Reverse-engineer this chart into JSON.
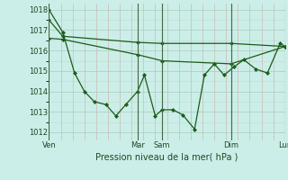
{
  "xlabel": "Pression niveau de la mer( hPa )",
  "bg_color": "#cceee8",
  "grid_color_major": "#aaccbb",
  "grid_color_minor": "#bbddcc",
  "vgrid_color": "#ccaaaa",
  "line_color": "#1a5c1a",
  "ylim": [
    1011.6,
    1018.3
  ],
  "yticks": [
    1012,
    1013,
    1014,
    1015,
    1016,
    1017,
    1018
  ],
  "xlim": [
    0,
    240
  ],
  "vline_positions": [
    0,
    90,
    115,
    185,
    240
  ],
  "xtick_positions": [
    0,
    90,
    115,
    185,
    240
  ],
  "xtick_labels": [
    "Ven",
    "Mar",
    "Sam",
    "Dim",
    "Lun"
  ],
  "line1_x": [
    0,
    14,
    26,
    36,
    46,
    58,
    68,
    78,
    90,
    97,
    108,
    115,
    126,
    136,
    148,
    158,
    168,
    178,
    188,
    198,
    210,
    222,
    235,
    240
  ],
  "line1_y": [
    1018.0,
    1016.9,
    1014.9,
    1014.0,
    1013.5,
    1013.35,
    1012.8,
    1013.35,
    1014.0,
    1014.8,
    1012.8,
    1013.1,
    1013.1,
    1012.85,
    1012.15,
    1014.8,
    1015.35,
    1014.8,
    1015.2,
    1015.55,
    1015.1,
    1014.9,
    1016.35,
    1016.2
  ],
  "line2_x": [
    0,
    14,
    90,
    115,
    185,
    240
  ],
  "line2_y": [
    1017.5,
    1016.7,
    1016.4,
    1016.35,
    1016.35,
    1016.2
  ],
  "line3_x": [
    0,
    14,
    90,
    115,
    185,
    240
  ],
  "line3_y": [
    1016.6,
    1016.55,
    1015.8,
    1015.5,
    1015.35,
    1016.2
  ]
}
